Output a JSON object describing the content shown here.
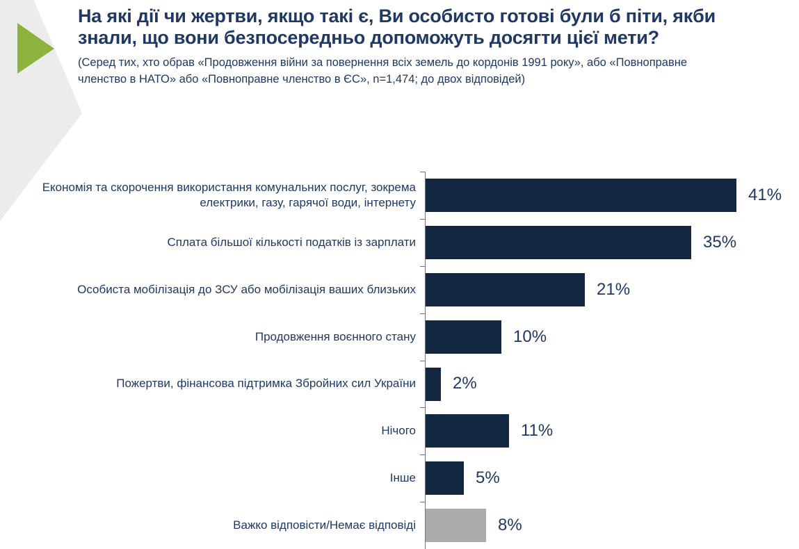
{
  "header": {
    "title": "На які дії чи жертви, якщо такі є, Ви особисто готові були б піти, якби знали, що вони безпосередньо допоможуть досягти цієї мети?",
    "subtitle": "(Серед тих, хто обрав «Продовження війни за повернення всіх земель до кордонів 1991 року», або «Повноправне членство в НАТО» або «Повноправне членство в ЄС», n=1,474; до двох  відповідей)"
  },
  "decor": {
    "arrow_color": "#8cb33e",
    "chevron_color": "#ececec"
  },
  "chart_data": {
    "type": "bar",
    "orientation": "horizontal",
    "title": "На які дії чи жертви, якщо такі є, Ви особисто готові були б піти, якби знали, що вони безпосередньо допоможуть досягти цієї мети?",
    "categories": [
      "Економія та скорочення використання комунальних послуг, зокрема електрики, газу, гарячої води, інтернету",
      "Сплата більшої кількості податків із зарплати",
      "Особиста мобілізація до ЗСУ або мобілізація ваших близьких",
      "Продовження воєнного стану",
      "Пожертви, фінансова підтримка Збройних сил України",
      "Нічого",
      "Інше",
      "Важко відповісти/Немає відповіді"
    ],
    "values": [
      41,
      35,
      21,
      10,
      2,
      11,
      5,
      8
    ],
    "value_labels": [
      "41%",
      "35%",
      "21%",
      "10%",
      "2%",
      "11%",
      "5%",
      "8%"
    ],
    "bar_colors": [
      "#132840",
      "#132840",
      "#132840",
      "#132840",
      "#132840",
      "#132840",
      "#132840",
      "#ababab"
    ],
    "xlabel": "",
    "ylabel": "",
    "xlim": [
      0,
      45
    ],
    "grid": false,
    "legend": false,
    "colors": {
      "bar": "#132840",
      "muted_bar": "#ababab",
      "axis": "#737373",
      "text": "#1f3864"
    }
  }
}
